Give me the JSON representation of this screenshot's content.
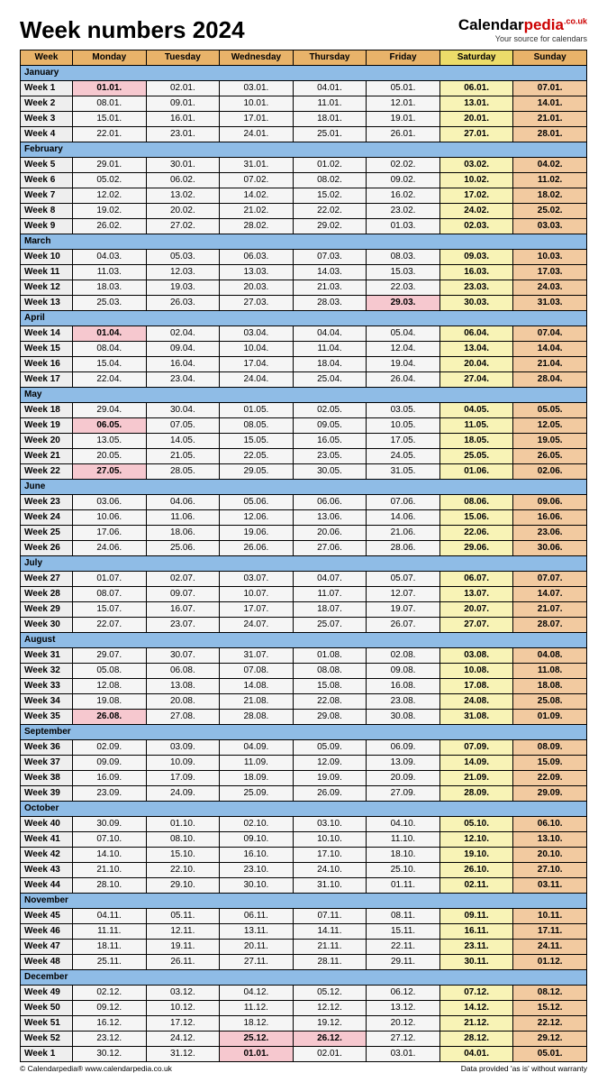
{
  "title": "Week numbers 2024",
  "brand": {
    "black": "Calendar",
    "red": "pedia",
    "couk": ".co.uk",
    "sub": "Your source for calendars"
  },
  "footer": {
    "left": "© Calendarpedia®   www.calendarpedia.co.uk",
    "right": "Data provided 'as is' without warranty"
  },
  "colors": {
    "header_bg": "#e8b36a",
    "month_bg": "#8fbce6",
    "weekday_bg": "#f5f5f5",
    "week_col_bg": "#eeeeee",
    "sat_bg": "#f8f3b6",
    "sun_bg": "#f2caa0",
    "holiday_bg": "#f6c8cf",
    "sat_header_bg": "#ecdc6a",
    "sun_header_bg": "#e8b36a"
  },
  "headers": [
    "Week",
    "Monday",
    "Tuesday",
    "Wednesday",
    "Thursday",
    "Friday",
    "Saturday",
    "Sunday"
  ],
  "months": [
    {
      "name": "January",
      "weeks": [
        {
          "wk": "Week 1",
          "d": [
            "01.01.",
            "02.01.",
            "03.01.",
            "04.01.",
            "05.01.",
            "06.01.",
            "07.01."
          ],
          "hol": [
            0
          ]
        },
        {
          "wk": "Week 2",
          "d": [
            "08.01.",
            "09.01.",
            "10.01.",
            "11.01.",
            "12.01.",
            "13.01.",
            "14.01."
          ]
        },
        {
          "wk": "Week 3",
          "d": [
            "15.01.",
            "16.01.",
            "17.01.",
            "18.01.",
            "19.01.",
            "20.01.",
            "21.01."
          ]
        },
        {
          "wk": "Week 4",
          "d": [
            "22.01.",
            "23.01.",
            "24.01.",
            "25.01.",
            "26.01.",
            "27.01.",
            "28.01."
          ]
        }
      ]
    },
    {
      "name": "February",
      "weeks": [
        {
          "wk": "Week 5",
          "d": [
            "29.01.",
            "30.01.",
            "31.01.",
            "01.02.",
            "02.02.",
            "03.02.",
            "04.02."
          ]
        },
        {
          "wk": "Week 6",
          "d": [
            "05.02.",
            "06.02.",
            "07.02.",
            "08.02.",
            "09.02.",
            "10.02.",
            "11.02."
          ]
        },
        {
          "wk": "Week 7",
          "d": [
            "12.02.",
            "13.02.",
            "14.02.",
            "15.02.",
            "16.02.",
            "17.02.",
            "18.02."
          ]
        },
        {
          "wk": "Week 8",
          "d": [
            "19.02.",
            "20.02.",
            "21.02.",
            "22.02.",
            "23.02.",
            "24.02.",
            "25.02."
          ]
        },
        {
          "wk": "Week 9",
          "d": [
            "26.02.",
            "27.02.",
            "28.02.",
            "29.02.",
            "01.03.",
            "02.03.",
            "03.03."
          ]
        }
      ]
    },
    {
      "name": "March",
      "weeks": [
        {
          "wk": "Week 10",
          "d": [
            "04.03.",
            "05.03.",
            "06.03.",
            "07.03.",
            "08.03.",
            "09.03.",
            "10.03."
          ]
        },
        {
          "wk": "Week 11",
          "d": [
            "11.03.",
            "12.03.",
            "13.03.",
            "14.03.",
            "15.03.",
            "16.03.",
            "17.03."
          ]
        },
        {
          "wk": "Week 12",
          "d": [
            "18.03.",
            "19.03.",
            "20.03.",
            "21.03.",
            "22.03.",
            "23.03.",
            "24.03."
          ]
        },
        {
          "wk": "Week 13",
          "d": [
            "25.03.",
            "26.03.",
            "27.03.",
            "28.03.",
            "29.03.",
            "30.03.",
            "31.03."
          ],
          "hol": [
            4
          ]
        }
      ]
    },
    {
      "name": "April",
      "weeks": [
        {
          "wk": "Week 14",
          "d": [
            "01.04.",
            "02.04.",
            "03.04.",
            "04.04.",
            "05.04.",
            "06.04.",
            "07.04."
          ],
          "hol": [
            0
          ]
        },
        {
          "wk": "Week 15",
          "d": [
            "08.04.",
            "09.04.",
            "10.04.",
            "11.04.",
            "12.04.",
            "13.04.",
            "14.04."
          ]
        },
        {
          "wk": "Week 16",
          "d": [
            "15.04.",
            "16.04.",
            "17.04.",
            "18.04.",
            "19.04.",
            "20.04.",
            "21.04."
          ]
        },
        {
          "wk": "Week 17",
          "d": [
            "22.04.",
            "23.04.",
            "24.04.",
            "25.04.",
            "26.04.",
            "27.04.",
            "28.04."
          ]
        }
      ]
    },
    {
      "name": "May",
      "weeks": [
        {
          "wk": "Week 18",
          "d": [
            "29.04.",
            "30.04.",
            "01.05.",
            "02.05.",
            "03.05.",
            "04.05.",
            "05.05."
          ]
        },
        {
          "wk": "Week 19",
          "d": [
            "06.05.",
            "07.05.",
            "08.05.",
            "09.05.",
            "10.05.",
            "11.05.",
            "12.05."
          ],
          "hol": [
            0
          ]
        },
        {
          "wk": "Week 20",
          "d": [
            "13.05.",
            "14.05.",
            "15.05.",
            "16.05.",
            "17.05.",
            "18.05.",
            "19.05."
          ]
        },
        {
          "wk": "Week 21",
          "d": [
            "20.05.",
            "21.05.",
            "22.05.",
            "23.05.",
            "24.05.",
            "25.05.",
            "26.05."
          ]
        },
        {
          "wk": "Week 22",
          "d": [
            "27.05.",
            "28.05.",
            "29.05.",
            "30.05.",
            "31.05.",
            "01.06.",
            "02.06."
          ],
          "hol": [
            0
          ]
        }
      ]
    },
    {
      "name": "June",
      "weeks": [
        {
          "wk": "Week 23",
          "d": [
            "03.06.",
            "04.06.",
            "05.06.",
            "06.06.",
            "07.06.",
            "08.06.",
            "09.06."
          ]
        },
        {
          "wk": "Week 24",
          "d": [
            "10.06.",
            "11.06.",
            "12.06.",
            "13.06.",
            "14.06.",
            "15.06.",
            "16.06."
          ]
        },
        {
          "wk": "Week 25",
          "d": [
            "17.06.",
            "18.06.",
            "19.06.",
            "20.06.",
            "21.06.",
            "22.06.",
            "23.06."
          ]
        },
        {
          "wk": "Week 26",
          "d": [
            "24.06.",
            "25.06.",
            "26.06.",
            "27.06.",
            "28.06.",
            "29.06.",
            "30.06."
          ]
        }
      ]
    },
    {
      "name": "July",
      "weeks": [
        {
          "wk": "Week 27",
          "d": [
            "01.07.",
            "02.07.",
            "03.07.",
            "04.07.",
            "05.07.",
            "06.07.",
            "07.07."
          ]
        },
        {
          "wk": "Week 28",
          "d": [
            "08.07.",
            "09.07.",
            "10.07.",
            "11.07.",
            "12.07.",
            "13.07.",
            "14.07."
          ]
        },
        {
          "wk": "Week 29",
          "d": [
            "15.07.",
            "16.07.",
            "17.07.",
            "18.07.",
            "19.07.",
            "20.07.",
            "21.07."
          ]
        },
        {
          "wk": "Week 30",
          "d": [
            "22.07.",
            "23.07.",
            "24.07.",
            "25.07.",
            "26.07.",
            "27.07.",
            "28.07."
          ]
        }
      ]
    },
    {
      "name": "August",
      "weeks": [
        {
          "wk": "Week 31",
          "d": [
            "29.07.",
            "30.07.",
            "31.07.",
            "01.08.",
            "02.08.",
            "03.08.",
            "04.08."
          ]
        },
        {
          "wk": "Week 32",
          "d": [
            "05.08.",
            "06.08.",
            "07.08.",
            "08.08.",
            "09.08.",
            "10.08.",
            "11.08."
          ]
        },
        {
          "wk": "Week 33",
          "d": [
            "12.08.",
            "13.08.",
            "14.08.",
            "15.08.",
            "16.08.",
            "17.08.",
            "18.08."
          ]
        },
        {
          "wk": "Week 34",
          "d": [
            "19.08.",
            "20.08.",
            "21.08.",
            "22.08.",
            "23.08.",
            "24.08.",
            "25.08."
          ]
        },
        {
          "wk": "Week 35",
          "d": [
            "26.08.",
            "27.08.",
            "28.08.",
            "29.08.",
            "30.08.",
            "31.08.",
            "01.09."
          ],
          "hol": [
            0
          ]
        }
      ]
    },
    {
      "name": "September",
      "weeks": [
        {
          "wk": "Week 36",
          "d": [
            "02.09.",
            "03.09.",
            "04.09.",
            "05.09.",
            "06.09.",
            "07.09.",
            "08.09."
          ]
        },
        {
          "wk": "Week 37",
          "d": [
            "09.09.",
            "10.09.",
            "11.09.",
            "12.09.",
            "13.09.",
            "14.09.",
            "15.09."
          ]
        },
        {
          "wk": "Week 38",
          "d": [
            "16.09.",
            "17.09.",
            "18.09.",
            "19.09.",
            "20.09.",
            "21.09.",
            "22.09."
          ]
        },
        {
          "wk": "Week 39",
          "d": [
            "23.09.",
            "24.09.",
            "25.09.",
            "26.09.",
            "27.09.",
            "28.09.",
            "29.09."
          ]
        }
      ]
    },
    {
      "name": "October",
      "weeks": [
        {
          "wk": "Week 40",
          "d": [
            "30.09.",
            "01.10.",
            "02.10.",
            "03.10.",
            "04.10.",
            "05.10.",
            "06.10."
          ]
        },
        {
          "wk": "Week 41",
          "d": [
            "07.10.",
            "08.10.",
            "09.10.",
            "10.10.",
            "11.10.",
            "12.10.",
            "13.10."
          ]
        },
        {
          "wk": "Week 42",
          "d": [
            "14.10.",
            "15.10.",
            "16.10.",
            "17.10.",
            "18.10.",
            "19.10.",
            "20.10."
          ]
        },
        {
          "wk": "Week 43",
          "d": [
            "21.10.",
            "22.10.",
            "23.10.",
            "24.10.",
            "25.10.",
            "26.10.",
            "27.10."
          ]
        },
        {
          "wk": "Week 44",
          "d": [
            "28.10.",
            "29.10.",
            "30.10.",
            "31.10.",
            "01.11.",
            "02.11.",
            "03.11."
          ]
        }
      ]
    },
    {
      "name": "November",
      "weeks": [
        {
          "wk": "Week 45",
          "d": [
            "04.11.",
            "05.11.",
            "06.11.",
            "07.11.",
            "08.11.",
            "09.11.",
            "10.11."
          ]
        },
        {
          "wk": "Week 46",
          "d": [
            "11.11.",
            "12.11.",
            "13.11.",
            "14.11.",
            "15.11.",
            "16.11.",
            "17.11."
          ]
        },
        {
          "wk": "Week 47",
          "d": [
            "18.11.",
            "19.11.",
            "20.11.",
            "21.11.",
            "22.11.",
            "23.11.",
            "24.11."
          ]
        },
        {
          "wk": "Week 48",
          "d": [
            "25.11.",
            "26.11.",
            "27.11.",
            "28.11.",
            "29.11.",
            "30.11.",
            "01.12."
          ]
        }
      ]
    },
    {
      "name": "December",
      "weeks": [
        {
          "wk": "Week 49",
          "d": [
            "02.12.",
            "03.12.",
            "04.12.",
            "05.12.",
            "06.12.",
            "07.12.",
            "08.12."
          ]
        },
        {
          "wk": "Week 50",
          "d": [
            "09.12.",
            "10.12.",
            "11.12.",
            "12.12.",
            "13.12.",
            "14.12.",
            "15.12."
          ]
        },
        {
          "wk": "Week 51",
          "d": [
            "16.12.",
            "17.12.",
            "18.12.",
            "19.12.",
            "20.12.",
            "21.12.",
            "22.12."
          ]
        },
        {
          "wk": "Week 52",
          "d": [
            "23.12.",
            "24.12.",
            "25.12.",
            "26.12.",
            "27.12.",
            "28.12.",
            "29.12."
          ],
          "hol": [
            2,
            3
          ]
        },
        {
          "wk": "Week 1",
          "d": [
            "30.12.",
            "31.12.",
            "01.01.",
            "02.01.",
            "03.01.",
            "04.01.",
            "05.01."
          ],
          "hol": [
            2
          ]
        }
      ]
    }
  ]
}
